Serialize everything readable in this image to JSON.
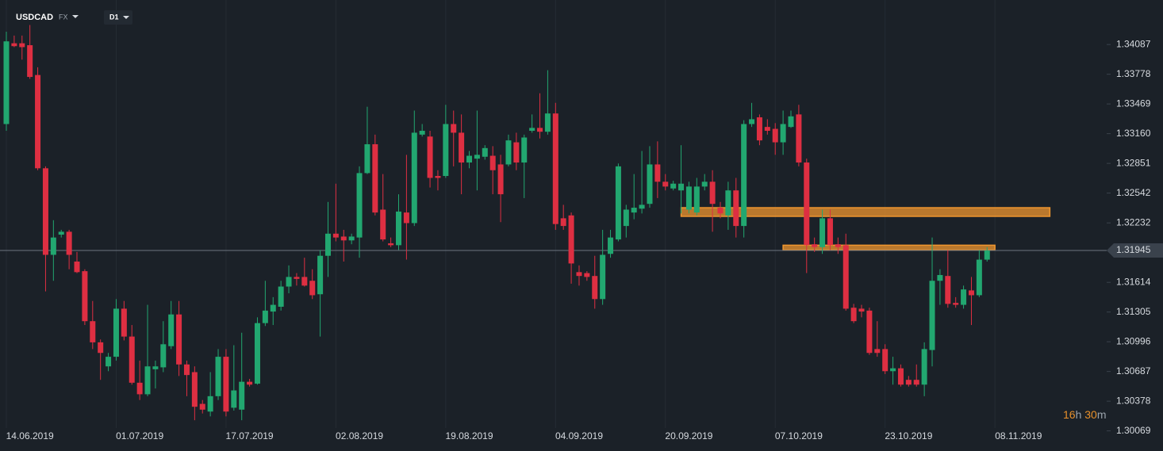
{
  "header": {
    "symbol": "USDCAD",
    "market": "FX",
    "timeframe": "D1"
  },
  "countdown": {
    "hours": "16",
    "hours_unit": "h",
    "minutes": "30",
    "minutes_unit": "m"
  },
  "chart_data": {
    "type": "candlestick",
    "categories": [
      null,
      null,
      null,
      "14.06.2019",
      null,
      null,
      null,
      null,
      null,
      null,
      null,
      null,
      null,
      null,
      null,
      null,
      null,
      "01.07.2019",
      null,
      null,
      null,
      null,
      null,
      null,
      null,
      null,
      null,
      null,
      null,
      null,
      null,
      "17.07.2019",
      null,
      null,
      null,
      null,
      null,
      null,
      null,
      null,
      null,
      null,
      null,
      null,
      null,
      "02.08.2019",
      null,
      null,
      null,
      null,
      null,
      null,
      null,
      null,
      null,
      null,
      null,
      null,
      null,
      "19.08.2019",
      null,
      null,
      null,
      null,
      null,
      null,
      null,
      null,
      null,
      null,
      null,
      null,
      null,
      "04.09.2019",
      null,
      null,
      null,
      null,
      null,
      null,
      null,
      null,
      null,
      null,
      null,
      null,
      null,
      "20.09.2019",
      null,
      null,
      null,
      null,
      null,
      null,
      null,
      null,
      null,
      null,
      null,
      null,
      null,
      "07.10.2019",
      null,
      null,
      null,
      null,
      null,
      null,
      null,
      null,
      null,
      null,
      null,
      null,
      null,
      "23.10.2019",
      null,
      null,
      null,
      null,
      null,
      null,
      null,
      null,
      null,
      null,
      null,
      null,
      null,
      "08.11.2019"
    ],
    "open": [
      1.3326,
      1.341,
      1.341,
      1.3408,
      1.3377,
      1.328,
      1.319,
      1.3211,
      1.3214,
      1.3183,
      1.3173,
      1.3121,
      1.3099,
      1.3074,
      1.3084,
      1.3134,
      1.3105,
      1.3057,
      1.3045,
      1.3071,
      1.3073,
      1.3095,
      1.3128,
      1.3076,
      1.3068,
      1.3035,
      1.3027,
      1.3043,
      1.3084,
      1.3031,
      1.3029,
      1.3058,
      1.3056,
      1.3119,
      1.3131,
      1.3136,
      1.3157,
      1.3167,
      1.3167,
      1.3163,
      1.3149,
      1.3189,
      1.3212,
      1.3209,
      1.3205,
      1.3208,
      1.3275,
      1.3305,
      1.3237,
      1.3202,
      1.32,
      1.3234,
      1.3223,
      1.3315,
      1.3313,
      1.3272,
      1.3272,
      1.3326,
      1.3317,
      1.3286,
      1.329,
      1.3292,
      1.3293,
      1.3284,
      1.3284,
      1.3307,
      1.3286,
      1.3319,
      1.3322,
      1.3318,
      1.3337,
      1.3228,
      1.3231,
      1.3172,
      1.3171,
      1.3168,
      1.3144,
      1.3191,
      1.3206,
      1.322,
      1.3234,
      1.3238,
      1.3243,
      1.3284,
      1.3266,
      1.3259,
      1.3257,
      1.3237,
      1.3234,
      1.3261,
      1.3266,
      1.3239,
      1.3231,
      1.3257,
      1.322,
      1.3326,
      1.3333,
      1.3323,
      1.3321,
      1.3307,
      1.3323,
      1.3336,
      1.3286,
      1.3201,
      1.3198,
      1.3228,
      1.3201,
      1.32,
      1.3135,
      1.3134,
      1.3132,
      1.3092,
      1.3092,
      1.3069,
      1.3072,
      1.306,
      1.306,
      1.3055,
      1.3091,
      1.3163,
      1.3168,
      1.314,
      1.3138,
      1.3153,
      1.3148,
      1.3185,
      null,
      null,
      null,
      null
    ],
    "high": [
      1.3422,
      1.3418,
      1.3418,
      1.3429,
      1.3385,
      1.3282,
      1.3226,
      1.3216,
      1.3216,
      1.3193,
      1.3175,
      1.3142,
      1.3102,
      1.3088,
      1.3144,
      1.3142,
      1.3117,
      1.308,
      1.3138,
      1.308,
      1.3121,
      1.3142,
      1.3142,
      1.308,
      1.3074,
      1.3039,
      1.3068,
      1.3092,
      1.3092,
      1.3096,
      1.3109,
      1.3061,
      1.3125,
      1.3163,
      1.3146,
      1.3163,
      1.3179,
      1.3171,
      1.3187,
      1.3175,
      1.3195,
      1.3245,
      1.3264,
      1.3216,
      1.3212,
      1.3282,
      1.3344,
      1.3315,
      1.3274,
      1.3208,
      1.3253,
      1.3294,
      1.334,
      1.3326,
      1.3319,
      1.3278,
      1.3346,
      1.334,
      1.3336,
      1.3298,
      1.334,
      1.3304,
      1.3303,
      1.3294,
      1.3315,
      1.3317,
      1.3315,
      1.3336,
      1.3358,
      1.3382,
      1.3348,
      1.3242,
      1.3234,
      1.3179,
      1.3173,
      1.3189,
      1.3216,
      1.3216,
      1.3285,
      1.3242,
      1.3274,
      1.3298,
      1.3303,
      1.3308,
      1.3274,
      1.3267,
      1.3304,
      1.3266,
      1.327,
      1.3274,
      1.3278,
      1.3245,
      1.3266,
      1.327,
      1.333,
      1.3348,
      1.3336,
      1.3331,
      1.3327,
      1.334,
      1.334,
      1.3346,
      1.329,
      1.3208,
      1.3237,
      1.3237,
      1.3208,
      1.3212,
      1.3139,
      1.3138,
      1.3135,
      1.3121,
      1.3097,
      1.3084,
      1.3076,
      1.3064,
      1.3076,
      1.3099,
      1.3208,
      1.3175,
      1.3195,
      1.3146,
      1.3158,
      1.3167,
      1.3195,
      1.3198,
      null,
      null,
      null,
      null
    ],
    "low": [
      1.3319,
      1.3406,
      1.3393,
      1.3373,
      1.3278,
      1.3152,
      1.3163,
      1.3208,
      1.3175,
      1.3171,
      1.3117,
      1.3092,
      1.306,
      1.3069,
      1.308,
      1.3101,
      1.3055,
      1.3039,
      1.3043,
      1.3051,
      1.3068,
      1.3092,
      1.3064,
      1.3043,
      1.3018,
      1.3025,
      1.3022,
      1.3039,
      1.3022,
      1.3028,
      1.3018,
      1.3053,
      1.3055,
      1.3116,
      1.3117,
      1.3132,
      1.315,
      1.3158,
      1.3157,
      1.3144,
      1.3105,
      1.3167,
      1.3204,
      1.3183,
      1.3201,
      1.3187,
      1.3274,
      1.3231,
      1.3204,
      1.3198,
      1.3195,
      1.3185,
      1.322,
      1.3313,
      1.326,
      1.3257,
      1.327,
      1.3282,
      1.3253,
      1.328,
      1.3257,
      1.3289,
      1.3253,
      1.3224,
      1.3282,
      1.3278,
      1.3249,
      1.3317,
      1.3311,
      1.3315,
      1.3216,
      1.3216,
      1.316,
      1.3158,
      1.3163,
      1.3134,
      1.3138,
      1.3187,
      1.3204,
      1.3208,
      1.3227,
      1.3233,
      1.3239,
      1.3249,
      1.3257,
      1.3257,
      1.3233,
      1.3233,
      1.3231,
      1.3257,
      1.3214,
      1.3228,
      1.3216,
      1.3208,
      1.3208,
      1.3323,
      1.3304,
      1.3315,
      1.3294,
      1.3294,
      1.3322,
      1.3282,
      1.3171,
      1.3193,
      1.3191,
      1.3195,
      1.3191,
      1.3132,
      1.3119,
      1.3125,
      1.3086,
      1.3084,
      1.3066,
      1.3055,
      1.3053,
      1.3053,
      1.3053,
      1.3043,
      1.3074,
      1.3138,
      1.3135,
      1.3135,
      1.3134,
      1.3117,
      1.3146,
      1.3183,
      null,
      null,
      null,
      null
    ],
    "close": [
      1.3412,
      1.3407,
      1.3406,
      1.3375,
      1.328,
      1.319,
      1.3208,
      1.3214,
      1.319,
      1.3172,
      1.3121,
      1.3099,
      1.3088,
      1.3084,
      1.3134,
      1.3105,
      1.3057,
      1.3045,
      1.3074,
      1.3074,
      1.3097,
      1.3128,
      1.3076,
      1.3065,
      1.3032,
      1.3029,
      1.3043,
      1.3084,
      1.3027,
      1.3049,
      1.3058,
      1.3055,
      1.3119,
      1.3132,
      1.3138,
      1.3157,
      1.3167,
      1.3165,
      1.3158,
      1.3148,
      1.3189,
      1.3212,
      1.3208,
      1.3205,
      1.3209,
      1.3275,
      1.3305,
      1.3234,
      1.3206,
      1.32,
      1.3235,
      1.3223,
      1.3317,
      1.3319,
      1.327,
      1.327,
      1.3326,
      1.3317,
      1.3286,
      1.3293,
      1.3294,
      1.3301,
      1.3278,
      1.3253,
      1.3309,
      1.3286,
      1.3312,
      1.3322,
      1.3318,
      1.3337,
      1.3222,
      1.322,
      1.3181,
      1.3168,
      1.3167,
      1.3144,
      1.319,
      1.3208,
      1.3282,
      1.3237,
      1.3239,
      1.3242,
      1.3284,
      1.3266,
      1.3261,
      1.3264,
      1.3264,
      1.3261,
      1.3261,
      1.3266,
      1.3243,
      1.3233,
      1.3257,
      1.322,
      1.3326,
      1.3331,
      1.3309,
      1.3319,
      1.3307,
      1.3326,
      1.3334,
      1.3286,
      1.32,
      1.3198,
      1.3228,
      1.32,
      1.3198,
      1.3134,
      1.3121,
      1.3131,
      1.3088,
      1.3088,
      1.3069,
      1.3072,
      1.3055,
      1.3055,
      1.3055,
      1.3092,
      1.3163,
      1.3169,
      1.3139,
      1.3138,
      1.3154,
      1.3148,
      1.3185,
      1.31945,
      null,
      null,
      null,
      null
    ],
    "up_color": "#22a770",
    "down_color": "#de2f42",
    "ylim": [
      1.3,
      1.3455
    ],
    "yticks": [
      1.34087,
      1.33778,
      1.33469,
      {
        "value": 1.3316,
        "label": "1.33160"
      },
      1.32851,
      1.32542,
      1.32232,
      1.31614,
      1.31305,
      1.30996,
      1.30687,
      1.30378,
      1.30069
    ],
    "current_price": 1.31945,
    "zones": [
      {
        "low": 1.323,
        "high": 1.3239,
        "start": 86,
        "end": 133,
        "color": "#f0962f"
      },
      {
        "low": 1.3195,
        "high": 1.32,
        "start": 99,
        "end": 126,
        "color": "#f0962f"
      }
    ],
    "grid": true
  }
}
